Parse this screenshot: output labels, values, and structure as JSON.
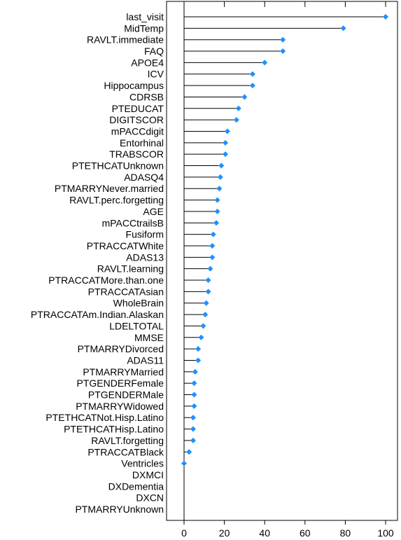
{
  "chart_data": {
    "type": "dot",
    "title": "",
    "xlabel": "",
    "ylabel": "",
    "xlim": [
      0,
      100
    ],
    "xticks": [
      0,
      20,
      40,
      60,
      80,
      100
    ],
    "grid": false,
    "marker_color": "#1E90FF",
    "line_color": "#000000",
    "categories": [
      "last_visit",
      "MidTemp",
      "RAVLT.immediate",
      "FAQ",
      "APOE4",
      "ICV",
      "Hippocampus",
      "CDRSB",
      "PTEDUCAT",
      "DIGITSCOR",
      "mPACCdigit",
      "Entorhinal",
      "TRABSCOR",
      "PTETHCATUnknown",
      "ADASQ4",
      "PTMARRYNever.married",
      "RAVLT.perc.forgetting",
      "AGE",
      "mPACCtrailsB",
      "Fusiform",
      "PTRACCATWhite",
      "ADAS13",
      "RAVLT.learning",
      "PTRACCATMore.than.one",
      "PTRACCATAsian",
      "WholeBrain",
      "PTRACCATAm.Indian.Alaskan",
      "LDELTOTAL",
      "MMSE",
      "PTMARRYDivorced",
      "ADAS11",
      "PTMARRYMarried",
      "PTGENDERFemale",
      "PTGENDERMale",
      "PTMARRYWidowed",
      "PTETHCATNot.Hisp.Latino",
      "PTETHCATHisp.Latino",
      "RAVLT.forgetting",
      "PTRACCATBlack",
      "Ventricles",
      "DXMCI",
      "DXDementia",
      "DXCN",
      "PTMARRYUnknown"
    ],
    "values": [
      100,
      79,
      49,
      49,
      40,
      34,
      34,
      30,
      27,
      26,
      21.5,
      20.5,
      20.5,
      18.5,
      18,
      17.5,
      16.5,
      16.5,
      16,
      14.5,
      14,
      14,
      13,
      12,
      12,
      11,
      10.5,
      9.5,
      8.5,
      7,
      7,
      5.5,
      5,
      5,
      5,
      4.5,
      4.5,
      4.5,
      2.5,
      0,
      null,
      null,
      null,
      null
    ]
  }
}
